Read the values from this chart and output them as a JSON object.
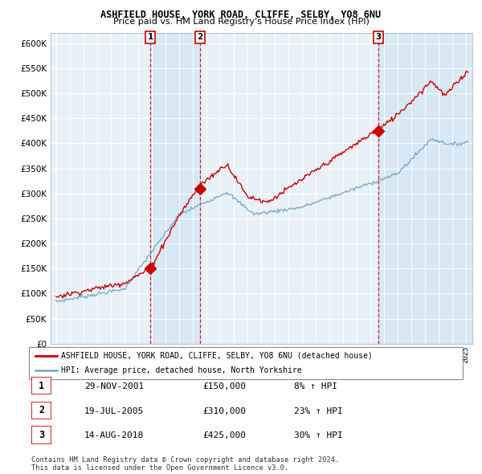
{
  "title1": "ASHFIELD HOUSE, YORK ROAD, CLIFFE, SELBY, YO8 6NU",
  "title2": "Price paid vs. HM Land Registry's House Price Index (HPI)",
  "legend_line1": "ASHFIELD HOUSE, YORK ROAD, CLIFFE, SELBY, YO8 6NU (detached house)",
  "legend_line2": "HPI: Average price, detached house, North Yorkshire",
  "transactions": [
    {
      "num": 1,
      "date": "29-NOV-2001",
      "price": "£150,000",
      "hpi": "8% ↑ HPI",
      "x_year": 2001.91
    },
    {
      "num": 2,
      "date": "19-JUL-2005",
      "price": "£310,000",
      "hpi": "23% ↑ HPI",
      "x_year": 2005.54
    },
    {
      "num": 3,
      "date": "14-AUG-2018",
      "price": "£425,000",
      "hpi": "30% ↑ HPI",
      "x_year": 2018.62
    }
  ],
  "sale_prices": [
    150000,
    310000,
    425000
  ],
  "footnote": "Contains HM Land Registry data © Crown copyright and database right 2024.\nThis data is licensed under the Open Government Licence v3.0.",
  "red_color": "#cc0000",
  "blue_color": "#7aadcf",
  "bg_shaded": "#d8e8f4",
  "bg_unshaded": "#e8f0f8",
  "ylim": [
    0,
    620000
  ],
  "yticks": [
    0,
    50000,
    100000,
    150000,
    200000,
    250000,
    300000,
    350000,
    400000,
    450000,
    500000,
    550000,
    600000
  ],
  "xlim_start": 1994.6,
  "xlim_end": 2025.5
}
